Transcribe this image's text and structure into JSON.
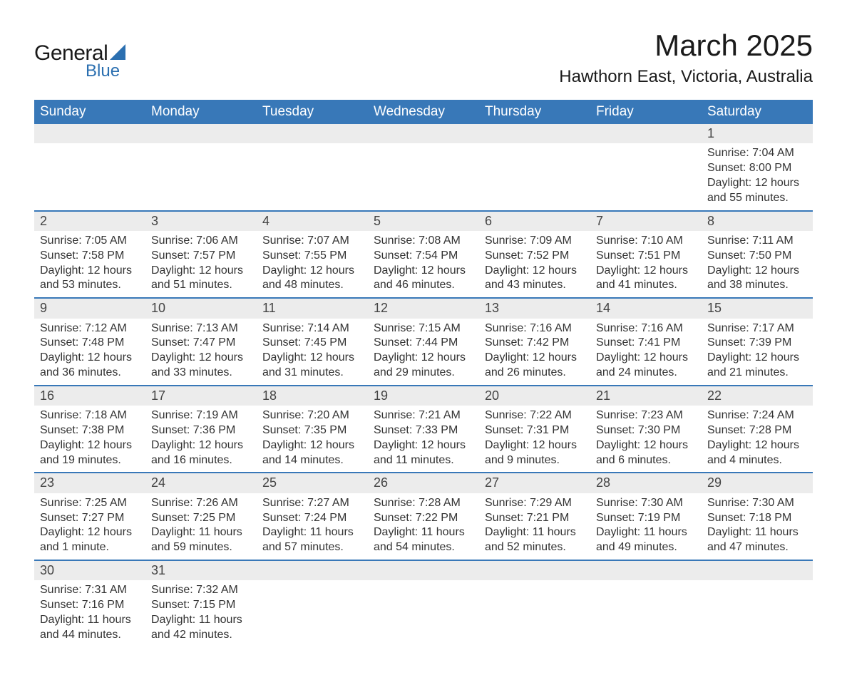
{
  "logo": {
    "main": "General",
    "sub": "Blue",
    "icon_color": "#2b6fb0",
    "text_color": "#1a1a1a"
  },
  "title": "March 2025",
  "subtitle": "Hawthorn East, Victoria, Australia",
  "header_bg": "#3878b8",
  "header_fg": "#ffffff",
  "daynum_bg": "#ececec",
  "border_color": "#3878b8",
  "columns": [
    "Sunday",
    "Monday",
    "Tuesday",
    "Wednesday",
    "Thursday",
    "Friday",
    "Saturday"
  ],
  "weeks": [
    [
      null,
      null,
      null,
      null,
      null,
      null,
      {
        "n": "1",
        "sr": "7:04 AM",
        "ss": "8:00 PM",
        "dl": "12 hours and 55 minutes."
      }
    ],
    [
      {
        "n": "2",
        "sr": "7:05 AM",
        "ss": "7:58 PM",
        "dl": "12 hours and 53 minutes."
      },
      {
        "n": "3",
        "sr": "7:06 AM",
        "ss": "7:57 PM",
        "dl": "12 hours and 51 minutes."
      },
      {
        "n": "4",
        "sr": "7:07 AM",
        "ss": "7:55 PM",
        "dl": "12 hours and 48 minutes."
      },
      {
        "n": "5",
        "sr": "7:08 AM",
        "ss": "7:54 PM",
        "dl": "12 hours and 46 minutes."
      },
      {
        "n": "6",
        "sr": "7:09 AM",
        "ss": "7:52 PM",
        "dl": "12 hours and 43 minutes."
      },
      {
        "n": "7",
        "sr": "7:10 AM",
        "ss": "7:51 PM",
        "dl": "12 hours and 41 minutes."
      },
      {
        "n": "8",
        "sr": "7:11 AM",
        "ss": "7:50 PM",
        "dl": "12 hours and 38 minutes."
      }
    ],
    [
      {
        "n": "9",
        "sr": "7:12 AM",
        "ss": "7:48 PM",
        "dl": "12 hours and 36 minutes."
      },
      {
        "n": "10",
        "sr": "7:13 AM",
        "ss": "7:47 PM",
        "dl": "12 hours and 33 minutes."
      },
      {
        "n": "11",
        "sr": "7:14 AM",
        "ss": "7:45 PM",
        "dl": "12 hours and 31 minutes."
      },
      {
        "n": "12",
        "sr": "7:15 AM",
        "ss": "7:44 PM",
        "dl": "12 hours and 29 minutes."
      },
      {
        "n": "13",
        "sr": "7:16 AM",
        "ss": "7:42 PM",
        "dl": "12 hours and 26 minutes."
      },
      {
        "n": "14",
        "sr": "7:16 AM",
        "ss": "7:41 PM",
        "dl": "12 hours and 24 minutes."
      },
      {
        "n": "15",
        "sr": "7:17 AM",
        "ss": "7:39 PM",
        "dl": "12 hours and 21 minutes."
      }
    ],
    [
      {
        "n": "16",
        "sr": "7:18 AM",
        "ss": "7:38 PM",
        "dl": "12 hours and 19 minutes."
      },
      {
        "n": "17",
        "sr": "7:19 AM",
        "ss": "7:36 PM",
        "dl": "12 hours and 16 minutes."
      },
      {
        "n": "18",
        "sr": "7:20 AM",
        "ss": "7:35 PM",
        "dl": "12 hours and 14 minutes."
      },
      {
        "n": "19",
        "sr": "7:21 AM",
        "ss": "7:33 PM",
        "dl": "12 hours and 11 minutes."
      },
      {
        "n": "20",
        "sr": "7:22 AM",
        "ss": "7:31 PM",
        "dl": "12 hours and 9 minutes."
      },
      {
        "n": "21",
        "sr": "7:23 AM",
        "ss": "7:30 PM",
        "dl": "12 hours and 6 minutes."
      },
      {
        "n": "22",
        "sr": "7:24 AM",
        "ss": "7:28 PM",
        "dl": "12 hours and 4 minutes."
      }
    ],
    [
      {
        "n": "23",
        "sr": "7:25 AM",
        "ss": "7:27 PM",
        "dl": "12 hours and 1 minute."
      },
      {
        "n": "24",
        "sr": "7:26 AM",
        "ss": "7:25 PM",
        "dl": "11 hours and 59 minutes."
      },
      {
        "n": "25",
        "sr": "7:27 AM",
        "ss": "7:24 PM",
        "dl": "11 hours and 57 minutes."
      },
      {
        "n": "26",
        "sr": "7:28 AM",
        "ss": "7:22 PM",
        "dl": "11 hours and 54 minutes."
      },
      {
        "n": "27",
        "sr": "7:29 AM",
        "ss": "7:21 PM",
        "dl": "11 hours and 52 minutes."
      },
      {
        "n": "28",
        "sr": "7:30 AM",
        "ss": "7:19 PM",
        "dl": "11 hours and 49 minutes."
      },
      {
        "n": "29",
        "sr": "7:30 AM",
        "ss": "7:18 PM",
        "dl": "11 hours and 47 minutes."
      }
    ],
    [
      {
        "n": "30",
        "sr": "7:31 AM",
        "ss": "7:16 PM",
        "dl": "11 hours and 44 minutes."
      },
      {
        "n": "31",
        "sr": "7:32 AM",
        "ss": "7:15 PM",
        "dl": "11 hours and 42 minutes."
      },
      null,
      null,
      null,
      null,
      null
    ]
  ],
  "labels": {
    "sunrise": "Sunrise: ",
    "sunset": "Sunset: ",
    "daylight": "Daylight: "
  }
}
